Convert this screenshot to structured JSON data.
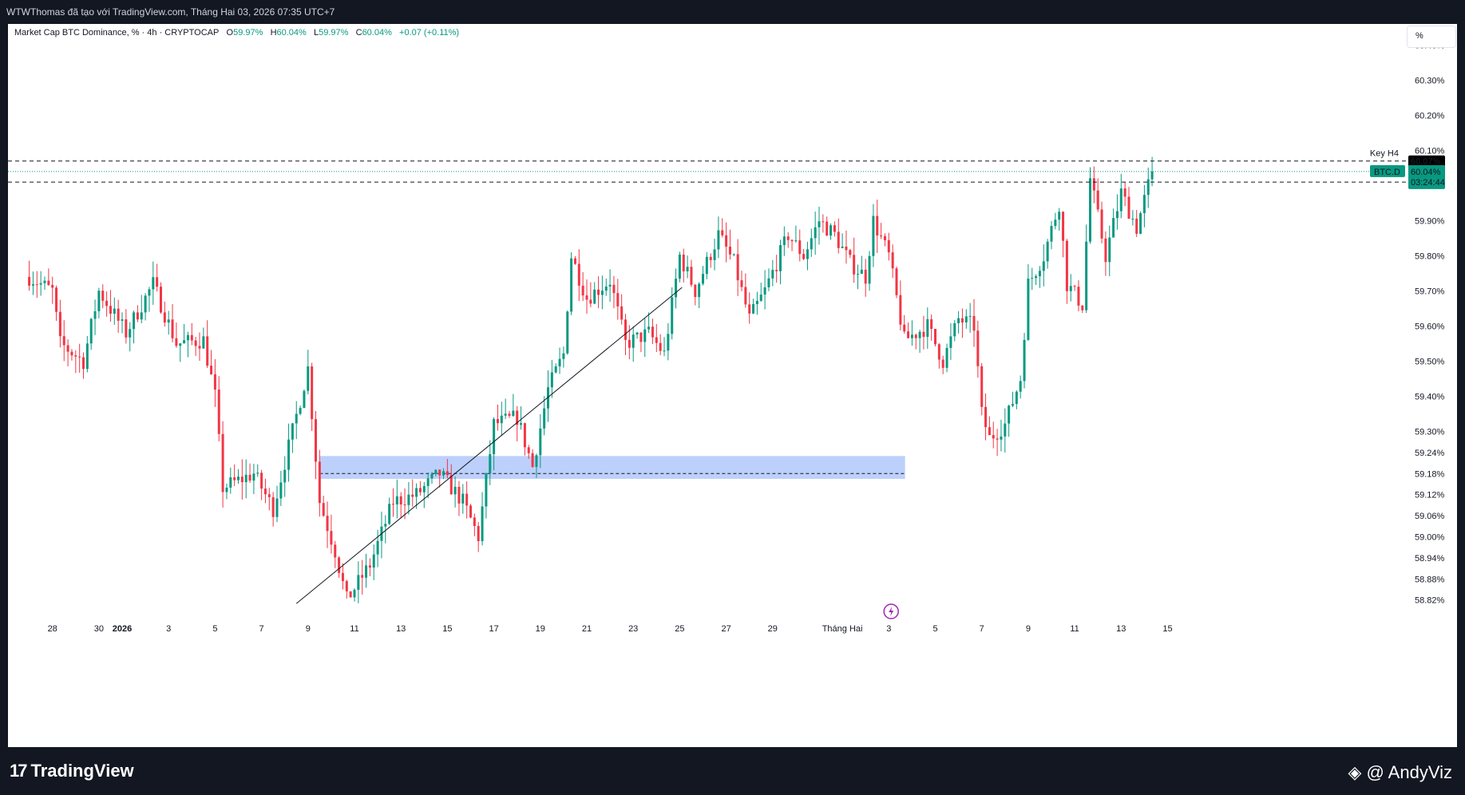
{
  "header": {
    "publish_line": "WTWThomas đã tạo với TradingView.com, Tháng Hai 03, 2026 07:35 UTC+7"
  },
  "legend": {
    "symbol": "Market Cap BTC Dominance, % · 4h · CRYPTOCAP",
    "open_label": "O",
    "open": "59.97%",
    "high_label": "H",
    "high": "60.04%",
    "low_label": "L",
    "low": "59.97%",
    "close_label": "C",
    "close": "60.04%",
    "change": "+0.07 (+0.11%)"
  },
  "unit_label": "%",
  "footer": {
    "brand": "TradingView",
    "author": "@ AndyViz"
  },
  "colors": {
    "up": "#089981",
    "down": "#f23645",
    "zone": "#bcd0fb",
    "trendline": "#131722",
    "price_tag": "#089981",
    "level_tag": "#000000"
  },
  "chart_data": {
    "type": "candlestick",
    "timeframe": "4h",
    "y_axis": {
      "unit": "%",
      "tick_labels": [
        "60.40%",
        "60.30%",
        "60.20%",
        "60.10%",
        "59.90%",
        "59.80%",
        "59.70%",
        "59.60%",
        "59.50%",
        "59.40%",
        "59.30%",
        "59.24%",
        "59.18%",
        "59.12%",
        "59.06%",
        "59.00%",
        "58.94%",
        "58.88%",
        "58.82%"
      ],
      "range": [
        58.8,
        60.44
      ]
    },
    "x_axis": {
      "tick_labels": [
        "28",
        "30",
        "2026",
        "3",
        "5",
        "7",
        "9",
        "11",
        "13",
        "15",
        "17",
        "19",
        "21",
        "23",
        "25",
        "27",
        "29",
        "Tháng Hai",
        "3",
        "5",
        "7",
        "9",
        "11",
        "13",
        "15"
      ]
    },
    "waypoints": [
      [
        0,
        59.74
      ],
      [
        6,
        59.7
      ],
      [
        8,
        59.55
      ],
      [
        14,
        59.5
      ],
      [
        18,
        59.7
      ],
      [
        25,
        59.58
      ],
      [
        32,
        59.72
      ],
      [
        38,
        59.55
      ],
      [
        45,
        59.56
      ],
      [
        48,
        59.4
      ],
      [
        50,
        59.14
      ],
      [
        58,
        59.18
      ],
      [
        63,
        59.08
      ],
      [
        68,
        59.3
      ],
      [
        72,
        59.48
      ],
      [
        75,
        59.1
      ],
      [
        79,
        58.96
      ],
      [
        82,
        58.82
      ],
      [
        88,
        58.92
      ],
      [
        94,
        59.1
      ],
      [
        100,
        59.12
      ],
      [
        106,
        59.18
      ],
      [
        112,
        59.1
      ],
      [
        116,
        59.0
      ],
      [
        120,
        59.32
      ],
      [
        126,
        59.34
      ],
      [
        130,
        59.2
      ],
      [
        134,
        59.42
      ],
      [
        138,
        59.52
      ],
      [
        140,
        59.8
      ],
      [
        144,
        59.68
      ],
      [
        150,
        59.73
      ],
      [
        154,
        59.55
      ],
      [
        160,
        59.58
      ],
      [
        164,
        59.52
      ],
      [
        168,
        59.8
      ],
      [
        172,
        59.7
      ],
      [
        178,
        59.86
      ],
      [
        182,
        59.78
      ],
      [
        186,
        59.62
      ],
      [
        190,
        59.7
      ],
      [
        196,
        59.86
      ],
      [
        200,
        59.8
      ],
      [
        204,
        59.9
      ],
      [
        208,
        59.86
      ],
      [
        212,
        59.78
      ],
      [
        216,
        59.74
      ],
      [
        218,
        59.9
      ],
      [
        222,
        59.8
      ],
      [
        226,
        59.56
      ],
      [
        232,
        59.6
      ],
      [
        236,
        59.5
      ],
      [
        240,
        59.62
      ],
      [
        244,
        59.6
      ],
      [
        246,
        59.35
      ],
      [
        248,
        59.28
      ],
      [
        252,
        59.32
      ],
      [
        256,
        59.45
      ],
      [
        258,
        59.72
      ],
      [
        262,
        59.8
      ],
      [
        266,
        59.95
      ],
      [
        268,
        59.72
      ],
      [
        272,
        59.66
      ],
      [
        274,
        60.02
      ],
      [
        278,
        59.8
      ],
      [
        282,
        59.98
      ],
      [
        286,
        59.88
      ],
      [
        290,
        60.04
      ]
    ],
    "candle_count": 291,
    "first_candle_date": "Dec 27",
    "last_close": 60.04,
    "annotations": [
      {
        "kind": "horizontal_dashed",
        "value": 60.07,
        "label": "Key H4"
      },
      {
        "kind": "horizontal_dashed",
        "value": 60.01,
        "label": ""
      },
      {
        "kind": "horizontal_dotted",
        "value": 60.04,
        "label": "BTC.D"
      },
      {
        "kind": "zone_rectangle",
        "from": 59.165,
        "to": 59.23,
        "start_date": "Jan 9",
        "end_date": "Feb 4"
      },
      {
        "kind": "horizontal_dashed",
        "value": 59.18,
        "start_date": "Jan 9",
        "end_date": "Feb 4"
      },
      {
        "kind": "trendline",
        "from": [
          7.5,
          58.81
        ],
        "to": [
          24.1,
          59.71
        ],
        "units": "[days since Dec 31, %]"
      }
    ],
    "price_tags": {
      "level_upper": "60.07%",
      "current_value": "60.04%",
      "countdown": "03:24:44",
      "level_lower": "60.01%",
      "symbol": "BTC.D"
    },
    "watermark_icon": "lightning-icon"
  }
}
